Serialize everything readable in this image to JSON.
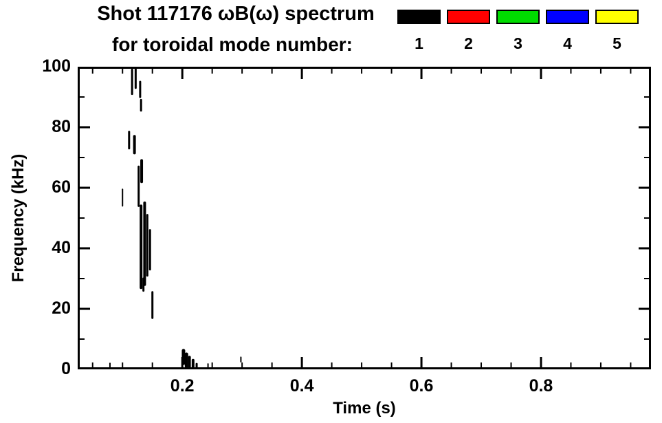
{
  "header": {
    "title_line1": "Shot 117176 ωB(ω) spectrum",
    "title_line2": "for toroidal mode number:"
  },
  "chart_data": {
    "type": "scatter",
    "title": "Shot 117176 ωB(ω) spectrum for toroidal mode number:",
    "xlabel": "Time (s)",
    "ylabel": "Frequency (kHz)",
    "xlim": [
      0.025,
      0.984
    ],
    "ylim": [
      0,
      100
    ],
    "xticks": [
      0.2,
      0.4,
      0.6,
      0.8
    ],
    "xtick_labels": [
      "0.2",
      "0.4",
      "0.6",
      "0.8"
    ],
    "yticks": [
      0,
      20,
      40,
      60,
      80,
      100
    ],
    "ytick_labels": [
      "0",
      "20",
      "40",
      "60",
      "80",
      "100"
    ],
    "x_minor_step": 0.05,
    "y_minor_step": 10,
    "grid": false,
    "frame_color": "#000000",
    "legend_position": "top-right-above-plot",
    "legend": [
      {
        "label": "1",
        "color": "#000000"
      },
      {
        "label": "2",
        "color": "#ff0000"
      },
      {
        "label": "3",
        "color": "#00dd00"
      },
      {
        "label": "4",
        "color": "#0000ff"
      },
      {
        "label": "5",
        "color": "#ffff00"
      }
    ],
    "series": [
      {
        "name": "toroidal mode n=1",
        "color": "#000000",
        "segment_format": "vertical stroke: t in s, f0-f1 in kHz, w stroke px",
        "segments": [
          {
            "t": 0.116,
            "f0": 91,
            "f1": 99,
            "w": 3
          },
          {
            "t": 0.122,
            "f0": 93,
            "f1": 100,
            "w": 3
          },
          {
            "t": 0.1295,
            "f0": 90,
            "f1": 95,
            "w": 3
          },
          {
            "t": 0.131,
            "f0": 85.5,
            "f1": 89,
            "w": 3
          },
          {
            "t": 0.111,
            "f0": 73,
            "f1": 78.5,
            "w": 3
          },
          {
            "t": 0.12,
            "f0": 71.5,
            "f1": 77,
            "w": 4
          },
          {
            "t": 0.132,
            "f0": 62,
            "f1": 69,
            "w": 4
          },
          {
            "t": 0.127,
            "f0": 54,
            "f1": 67,
            "w": 3
          },
          {
            "t": 0.1,
            "f0": 54,
            "f1": 59.5,
            "w": 2
          },
          {
            "t": 0.131,
            "f0": 27,
            "f1": 54,
            "w": 4
          },
          {
            "t": 0.137,
            "f0": 28,
            "f1": 55,
            "w": 4
          },
          {
            "t": 0.1415,
            "f0": 31,
            "f1": 51,
            "w": 3
          },
          {
            "t": 0.146,
            "f0": 33,
            "f1": 46,
            "w": 3
          },
          {
            "t": 0.135,
            "f0": 26,
            "f1": 30,
            "w": 3
          },
          {
            "t": 0.15,
            "f0": 17,
            "f1": 25.5,
            "w": 3
          },
          {
            "t": 0.079,
            "f0": 0.8,
            "f1": 2,
            "w": 2
          },
          {
            "t": 0.202,
            "f0": 2,
            "f1": 6.2,
            "w": 5
          },
          {
            "t": 0.207,
            "f0": 1,
            "f1": 5,
            "w": 5
          },
          {
            "t": 0.212,
            "f0": 0.5,
            "f1": 4,
            "w": 4
          },
          {
            "t": 0.218,
            "f0": 0.5,
            "f1": 3,
            "w": 4
          },
          {
            "t": 0.224,
            "f0": 0.5,
            "f1": 1.8,
            "w": 3
          },
          {
            "t": 0.243,
            "f0": 0.8,
            "f1": 1.8,
            "w": 2
          },
          {
            "t": 0.298,
            "f0": 2.5,
            "f1": 4,
            "w": 2
          }
        ]
      },
      {
        "name": "toroidal mode n=2",
        "color": "#ff0000",
        "segments": []
      },
      {
        "name": "toroidal mode n=3",
        "color": "#00dd00",
        "segments": []
      },
      {
        "name": "toroidal mode n=4",
        "color": "#0000ff",
        "segments": []
      },
      {
        "name": "toroidal mode n=5",
        "color": "#ffff00",
        "segments": []
      }
    ]
  }
}
